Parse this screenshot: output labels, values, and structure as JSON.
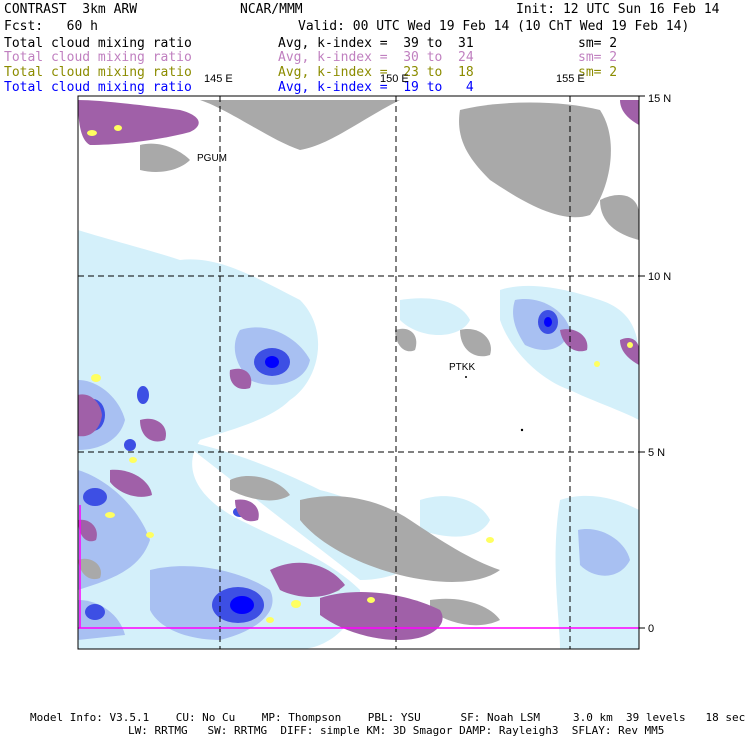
{
  "header": {
    "model": "CONTRAST  3km ARW",
    "org": "NCAR/MMM",
    "init": "Init: 12 UTC Sun 16 Feb 14",
    "fcst": "Fcst:   60 h",
    "valid": "Valid: 00 UTC Wed 19 Feb 14 (10 ChT Wed 19 Feb 14)"
  },
  "legend": [
    {
      "field": "Total cloud mixing ratio",
      "range": "Avg, k-index =  39 to  31",
      "sm": "sm= 2",
      "color": "#000000"
    },
    {
      "field": "Total cloud mixing ratio",
      "range": "Avg, k-index =  30 to  24",
      "sm": "sm= 2",
      "color": "#c080c0"
    },
    {
      "field": "Total cloud mixing ratio",
      "range": "Avg, k-index =  23 to  18",
      "sm": "sm= 2",
      "color": "#8c8c00"
    },
    {
      "field": "Total cloud mixing ratio",
      "range": "Avg, k-index =  19 to   4",
      "sm": "",
      "color": "#0000ff"
    }
  ],
  "map": {
    "lon_labels": [
      "145 E",
      "150 E",
      "155 E"
    ],
    "lat_labels": [
      "15 N",
      "10 N",
      "5 N",
      "0"
    ],
    "stations": [
      "PGUM",
      "PTKK"
    ],
    "colors": {
      "grey": "#a9a9a9",
      "purple": "#a060a8",
      "light_blue": "#d4f0fa",
      "mid_blue": "#9fb5ee",
      "blue": "#4050e0",
      "dark_blue": "#0000ff",
      "yellow": "#ffff60",
      "magenta": "#ff00ff"
    }
  },
  "footer": {
    "line1": "Model Info: V3.5.1    CU: No Cu    MP: Thompson    PBL: YSU      SF: Noah LSM     3.0 km  39 levels   18 sec",
    "line2": "LW: RRTMG   SW: RRTMG  DIFF: simple KM: 3D Smagor DAMP: Rayleigh3  SFLAY: Rev MM5"
  }
}
